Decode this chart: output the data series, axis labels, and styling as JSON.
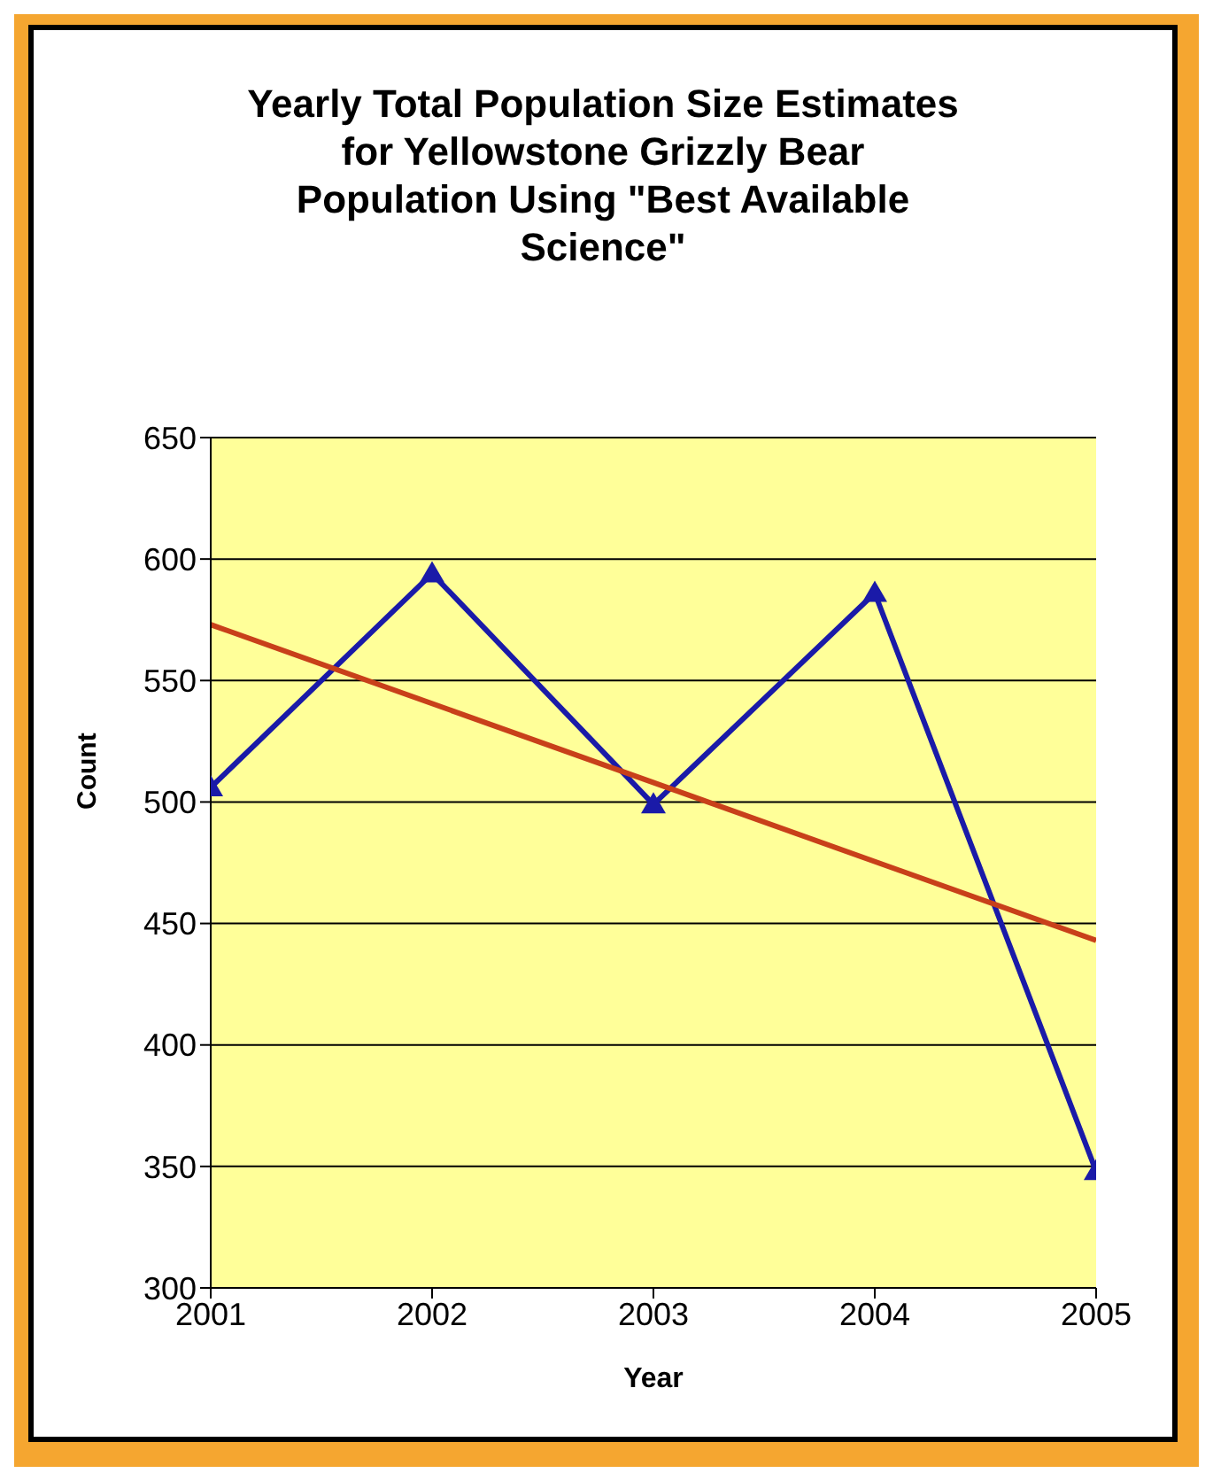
{
  "chart_data": {
    "type": "line",
    "title": "Yearly Total Population Size Estimates for Yellowstone Grizzly Bear Population Using \"Best Available Science\"",
    "xlabel": "Year",
    "ylabel": "Count",
    "x": [
      2001,
      2002,
      2003,
      2004,
      2005
    ],
    "xlim": [
      2001,
      2005
    ],
    "xticks": [
      2001,
      2002,
      2003,
      2004,
      2005
    ],
    "ylim": [
      300,
      650
    ],
    "yticks": [
      300,
      350,
      400,
      450,
      500,
      550,
      600,
      650
    ],
    "grid": "y",
    "series": [
      {
        "color": "#1a1aa8",
        "marker": "triangle",
        "values": [
          506,
          594,
          499,
          586,
          348
        ]
      },
      {
        "type": "line",
        "color": "#c8401a",
        "marker": "none",
        "x": [
          2001,
          2005
        ],
        "values": [
          573,
          443
        ]
      }
    ]
  }
}
